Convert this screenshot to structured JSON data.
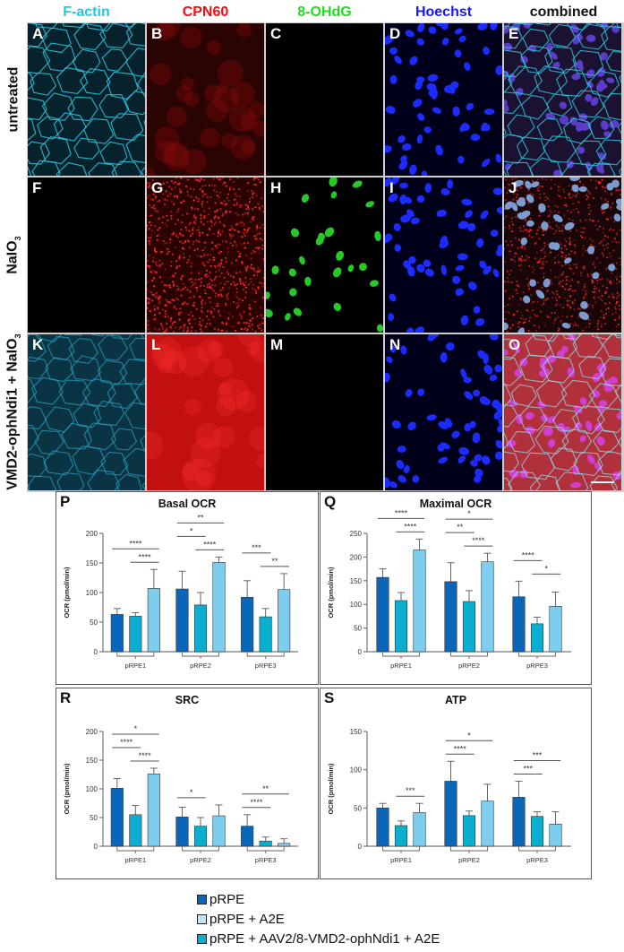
{
  "figure": {
    "column_headers": [
      {
        "label": "F-actin",
        "color": "#22c8e0"
      },
      {
        "label": "CPN60",
        "color": "#ee1111"
      },
      {
        "label": "8-OHdG",
        "color": "#22dd22"
      },
      {
        "label": "Hoechst",
        "color": "#1a1aee"
      },
      {
        "label": "combined",
        "color": "#111111"
      }
    ],
    "row_labels": [
      {
        "text": "untreated",
        "sub": ""
      },
      {
        "text": "NaIO",
        "sub": "3"
      },
      {
        "text": "VMD2-ophNdi1 + NaIO",
        "sub": "3"
      }
    ],
    "panels": [
      {
        "letter": "A",
        "stain": "F-actin",
        "row": "untreated",
        "appearance": "cyan cell borders"
      },
      {
        "letter": "B",
        "stain": "CPN60",
        "row": "untreated",
        "appearance": "dim red"
      },
      {
        "letter": "C",
        "stain": "8-OHdG",
        "row": "untreated",
        "appearance": "black"
      },
      {
        "letter": "D",
        "stain": "Hoechst",
        "row": "untreated",
        "appearance": "blue nuclei"
      },
      {
        "letter": "E",
        "stain": "combined",
        "row": "untreated",
        "appearance": "merged"
      },
      {
        "letter": "F",
        "stain": "F-actin",
        "row": "NaIO3",
        "appearance": "black"
      },
      {
        "letter": "G",
        "stain": "CPN60",
        "row": "NaIO3",
        "appearance": "bright red puncta"
      },
      {
        "letter": "H",
        "stain": "8-OHdG",
        "row": "NaIO3",
        "appearance": "green nuclei"
      },
      {
        "letter": "I",
        "stain": "Hoechst",
        "row": "NaIO3",
        "appearance": "blue nuclei"
      },
      {
        "letter": "J",
        "stain": "combined",
        "row": "NaIO3",
        "appearance": "merged"
      },
      {
        "letter": "K",
        "stain": "F-actin",
        "row": "VMD2-ophNdi1 + NaIO3",
        "appearance": "cyan cell borders"
      },
      {
        "letter": "L",
        "stain": "CPN60",
        "row": "VMD2-ophNdi1 + NaIO3",
        "appearance": "diffuse red"
      },
      {
        "letter": "M",
        "stain": "8-OHdG",
        "row": "VMD2-ophNdi1 + NaIO3",
        "appearance": "black"
      },
      {
        "letter": "N",
        "stain": "Hoechst",
        "row": "VMD2-ophNdi1 + NaIO3",
        "appearance": "blue nuclei"
      },
      {
        "letter": "O",
        "stain": "combined",
        "row": "VMD2-ophNdi1 + NaIO3",
        "appearance": "merged"
      }
    ]
  },
  "legend": {
    "items": [
      {
        "label": "pRPE",
        "color": "#0a66b8"
      },
      {
        "label": "pRPE + A2E",
        "color": "#c6e2f4"
      },
      {
        "label": "pRPE + AAV2/8-VMD2-ophNdi1 + A2E",
        "color": "#0aaed0"
      }
    ]
  },
  "bar_colors": [
    "#0a66b8",
    "#0aaed0",
    "#7ecdee"
  ],
  "chart_data": [
    {
      "panel": "P",
      "type": "bar",
      "title": "Basal OCR",
      "xlabel": "",
      "ylabel": "OCR (pmol/min)",
      "ylim": [
        0,
        200
      ],
      "yticks": [
        0,
        50,
        100,
        150,
        200
      ],
      "categories": [
        "pRPE1",
        "pRPE2",
        "pRPE3"
      ],
      "series": [
        {
          "name": "bar1",
          "values": [
            63,
            106,
            92
          ],
          "errors": [
            10,
            30,
            28
          ]
        },
        {
          "name": "bar2",
          "values": [
            60,
            79,
            59
          ],
          "errors": [
            6,
            21,
            14
          ]
        },
        {
          "name": "bar3",
          "values": [
            107,
            151,
            105
          ],
          "errors": [
            32,
            9,
            27
          ]
        }
      ],
      "significance": [
        {
          "group": "pRPE1",
          "from": 0,
          "to": 2,
          "label": "****",
          "level": 2
        },
        {
          "group": "pRPE1",
          "from": 1,
          "to": 2,
          "label": "****",
          "level": 1
        },
        {
          "group": "pRPE2",
          "from": 0,
          "to": 2,
          "label": "**",
          "level": 3
        },
        {
          "group": "pRPE2",
          "from": 0,
          "to": 1,
          "label": "*",
          "level": 2
        },
        {
          "group": "pRPE2",
          "from": 1,
          "to": 2,
          "label": "****",
          "level": 1
        },
        {
          "group": "pRPE3",
          "from": 0,
          "to": 1,
          "label": "***",
          "level": 2
        },
        {
          "group": "pRPE3",
          "from": 1,
          "to": 2,
          "label": "**",
          "level": 1
        }
      ]
    },
    {
      "panel": "Q",
      "type": "bar",
      "title": "Maximal OCR",
      "xlabel": "",
      "ylabel": "OCR (pmol/min)",
      "ylim": [
        0,
        250
      ],
      "yticks": [
        0,
        50,
        100,
        150,
        200,
        250
      ],
      "categories": [
        "pRPE1",
        "pRPE2",
        "pRPE3"
      ],
      "series": [
        {
          "name": "bar1",
          "values": [
            157,
            148,
            116
          ],
          "errors": [
            18,
            40,
            33
          ]
        },
        {
          "name": "bar2",
          "values": [
            108,
            106,
            59
          ],
          "errors": [
            17,
            23,
            14
          ]
        },
        {
          "name": "bar3",
          "values": [
            215,
            190,
            96
          ],
          "errors": [
            23,
            18,
            30
          ]
        }
      ],
      "significance": [
        {
          "group": "pRPE1",
          "from": 0,
          "to": 2,
          "label": "****",
          "level": 2
        },
        {
          "group": "pRPE1",
          "from": 1,
          "to": 2,
          "label": "****",
          "level": 1
        },
        {
          "group": "pRPE2",
          "from": 0,
          "to": 2,
          "label": "*",
          "level": 3
        },
        {
          "group": "pRPE2",
          "from": 0,
          "to": 1,
          "label": "**",
          "level": 2
        },
        {
          "group": "pRPE2",
          "from": 1,
          "to": 2,
          "label": "****",
          "level": 1
        },
        {
          "group": "pRPE3",
          "from": 0,
          "to": 1,
          "label": "****",
          "level": 2
        },
        {
          "group": "pRPE3",
          "from": 1,
          "to": 2,
          "label": "*",
          "level": 1
        }
      ]
    },
    {
      "panel": "R",
      "type": "bar",
      "title": "SRC",
      "xlabel": "",
      "ylabel": "OCR (pmol/min)",
      "ylim": [
        0,
        200
      ],
      "yticks": [
        0,
        50,
        100,
        150,
        200
      ],
      "categories": [
        "pRPE1",
        "pRPE2",
        "pRPE3"
      ],
      "series": [
        {
          "name": "bar1",
          "values": [
            101,
            51,
            35
          ],
          "errors": [
            17,
            17,
            20
          ]
        },
        {
          "name": "bar2",
          "values": [
            55,
            35,
            9
          ],
          "errors": [
            16,
            15,
            7
          ]
        },
        {
          "name": "bar3",
          "values": [
            126,
            53,
            5
          ],
          "errors": [
            10,
            19,
            8
          ]
        }
      ],
      "significance": [
        {
          "group": "pRPE1",
          "from": 0,
          "to": 2,
          "label": "*",
          "level": 3
        },
        {
          "group": "pRPE1",
          "from": 0,
          "to": 1,
          "label": "****",
          "level": 2
        },
        {
          "group": "pRPE1",
          "from": 1,
          "to": 2,
          "label": "****",
          "level": 1
        },
        {
          "group": "pRPE2",
          "from": 0,
          "to": 1,
          "label": "*",
          "level": 1
        },
        {
          "group": "pRPE3",
          "from": 0,
          "to": 2,
          "label": "**",
          "level": 2
        },
        {
          "group": "pRPE3",
          "from": 0,
          "to": 1,
          "label": "****",
          "level": 1
        }
      ]
    },
    {
      "panel": "S",
      "type": "bar",
      "title": "ATP",
      "xlabel": "",
      "ylabel": "OCR (pmol/min)",
      "ylim": [
        0,
        150
      ],
      "yticks": [
        0,
        50,
        100,
        150
      ],
      "categories": [
        "pRPE1",
        "pRPE2",
        "pRPE3"
      ],
      "series": [
        {
          "name": "bar1",
          "values": [
            50,
            85,
            64
          ],
          "errors": [
            6,
            26,
            21
          ]
        },
        {
          "name": "bar2",
          "values": [
            27,
            40,
            39
          ],
          "errors": [
            6,
            6,
            6
          ]
        },
        {
          "name": "bar3",
          "values": [
            44,
            59,
            29
          ],
          "errors": [
            12,
            22,
            16
          ]
        }
      ],
      "significance": [
        {
          "group": "pRPE1",
          "from": 1,
          "to": 2,
          "label": "***",
          "level": 1
        },
        {
          "group": "pRPE2",
          "from": 0,
          "to": 2,
          "label": "*",
          "level": 2
        },
        {
          "group": "pRPE2",
          "from": 0,
          "to": 1,
          "label": "****",
          "level": 1
        },
        {
          "group": "pRPE3",
          "from": 0,
          "to": 2,
          "label": "***",
          "level": 2
        },
        {
          "group": "pRPE3",
          "from": 0,
          "to": 1,
          "label": "***",
          "level": 1
        }
      ]
    }
  ]
}
